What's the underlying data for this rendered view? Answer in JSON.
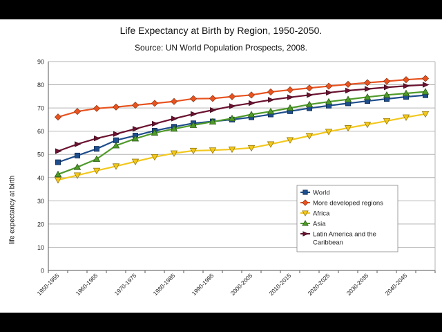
{
  "chart_data": {
    "type": "line",
    "title": "Life Expectancy at Birth by Region, 1950-2050.",
    "subtitle": "Source: UN World Population Prospects, 2008.",
    "xlabel": "",
    "ylabel": "life expectancy at birth",
    "ylim": [
      0,
      90
    ],
    "yticks": [
      0,
      10,
      20,
      30,
      40,
      50,
      60,
      70,
      80,
      90
    ],
    "grid": true,
    "legend_position": "bottom-right",
    "categories": [
      "1950-1955",
      "1955-1960",
      "1960-1965",
      "1965-1970",
      "1970-1975",
      "1975-1980",
      "1980-1985",
      "1985-1990",
      "1990-1995",
      "1995-2000",
      "2000-2005",
      "2005-2010",
      "2010-2015",
      "2015-2020",
      "2020-2025",
      "2025-2030",
      "2030-2035",
      "2035-2040",
      "2040-2045",
      "2045-2050"
    ],
    "x_tick_labels": [
      "1950-1955",
      "1960-1965",
      "1970-1975",
      "1980-1985",
      "1990-1995",
      "2000-2005",
      "2010-2015",
      "2020-2025",
      "2030-2035",
      "2040-2045"
    ],
    "series": [
      {
        "name": "World",
        "color": "#1f4e8c",
        "marker": "square",
        "values": [
          46.6,
          49.5,
          52.4,
          56.1,
          58.1,
          60.2,
          61.9,
          63.4,
          64.2,
          65.0,
          66.0,
          67.2,
          68.6,
          69.9,
          71.0,
          72.0,
          73.0,
          73.9,
          74.8,
          75.5
        ]
      },
      {
        "name": "More developed regions",
        "color": "#e8531f",
        "marker": "diamond",
        "values": [
          66.1,
          68.5,
          69.8,
          70.4,
          71.2,
          72.0,
          72.8,
          74.0,
          74.1,
          74.9,
          75.6,
          76.9,
          77.8,
          78.6,
          79.4,
          80.2,
          80.9,
          81.5,
          82.2,
          82.7
        ]
      },
      {
        "name": "Africa",
        "color": "#f2c81e",
        "marker": "triangle-down",
        "values": [
          39.0,
          41.0,
          43.0,
          44.9,
          46.9,
          48.9,
          50.5,
          51.6,
          51.8,
          52.2,
          52.8,
          54.4,
          56.2,
          58.0,
          59.8,
          61.4,
          62.9,
          64.4,
          66.0,
          67.4
        ]
      },
      {
        "name": "Asia",
        "color": "#4f9a2a",
        "marker": "triangle-up",
        "values": [
          41.4,
          44.5,
          48.0,
          53.8,
          56.8,
          59.3,
          61.0,
          62.6,
          64.1,
          65.5,
          67.2,
          68.5,
          70.0,
          71.5,
          72.7,
          73.7,
          74.7,
          75.6,
          76.3,
          77.0
        ]
      },
      {
        "name": "Latin America and the Caribbean",
        "color": "#6b1230",
        "marker": "triangle-right",
        "values": [
          51.4,
          54.4,
          56.9,
          58.8,
          61.0,
          63.2,
          65.4,
          67.4,
          69.1,
          70.8,
          72.1,
          73.5,
          74.6,
          75.6,
          76.6,
          77.5,
          78.2,
          78.9,
          79.5,
          80.0
        ]
      }
    ]
  }
}
